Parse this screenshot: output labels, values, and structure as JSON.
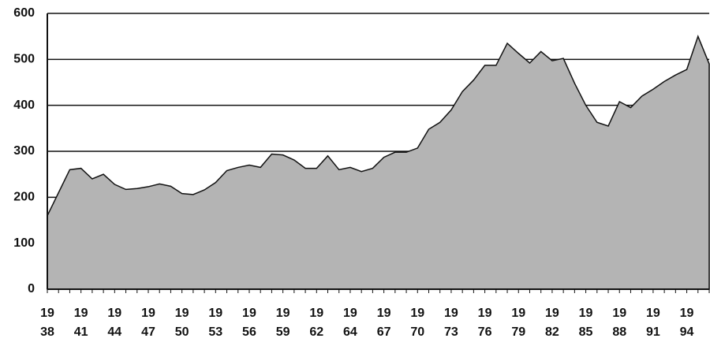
{
  "chart_data": {
    "type": "area",
    "categories": [
      "19\n38",
      null,
      null,
      "19\n41",
      null,
      null,
      "19\n44",
      null,
      null,
      "19\n47",
      null,
      null,
      "19\n50",
      null,
      null,
      "19\n53",
      null,
      null,
      "19\n56",
      null,
      null,
      "19\n59",
      null,
      null,
      "19\n62",
      null,
      null,
      "19\n64",
      null,
      null,
      "19\n67",
      null,
      null,
      "19\n70",
      null,
      null,
      "19\n73",
      null,
      null,
      "19\n76",
      null,
      null,
      "19\n79",
      null,
      null,
      "19\n82",
      null,
      null,
      "19\n85",
      null,
      null,
      "19\n88",
      null,
      null,
      "19\n91",
      null,
      null,
      "19\n94",
      null,
      null
    ],
    "values": [
      160,
      210,
      260,
      263,
      240,
      250,
      228,
      217,
      219,
      223,
      229,
      224,
      208,
      206,
      216,
      232,
      258,
      265,
      270,
      265,
      294,
      292,
      281,
      263,
      263,
      290,
      260,
      265,
      256,
      263,
      287,
      298,
      298,
      307,
      348,
      363,
      390,
      430,
      455,
      487,
      487,
      535,
      513,
      492,
      517,
      497,
      502,
      448,
      400,
      363,
      355,
      408,
      395,
      420,
      435,
      452,
      466,
      478,
      550,
      490
    ],
    "color": "#b4b4b4",
    "ylim": [
      0,
      600
    ],
    "yticks": [
      0,
      100,
      200,
      300,
      400,
      500,
      600
    ],
    "grid": true
  }
}
